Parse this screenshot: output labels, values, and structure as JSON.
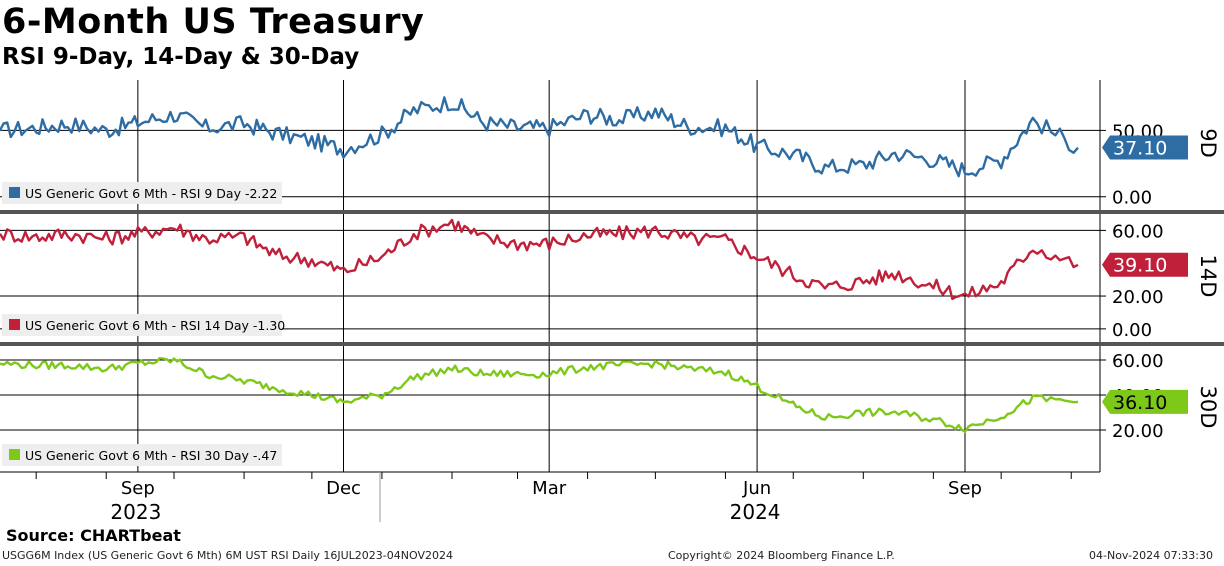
{
  "title": "6-Month US Treasury",
  "subtitle": "RSI 9-Day, 14-Day & 30-Day",
  "source": "Source: CHARTbeat",
  "footer": {
    "left": "USGG6M Index (US Generic Govt 6 Mth) 6M UST RSI  Daily 16JUL2023-04NOV2024",
    "center": "Copyright© 2024 Bloomberg Finance L.P.",
    "right": "04-Nov-2024 07:33:30"
  },
  "chart_data": [
    {
      "type": "line",
      "panel_label": "9D",
      "legend": "US Generic Govt 6 Mth - RSI 9 Day -2.22",
      "color": "#2e6da4",
      "last_value": "37.10",
      "y_ticks": [
        "0.00",
        "50.00"
      ],
      "ylim": [
        -10,
        88
      ],
      "x": [
        "2023-07-16",
        "2023-08-01",
        "2023-08-15",
        "2023-09-01",
        "2023-09-15",
        "2023-10-01",
        "2023-10-15",
        "2023-11-01",
        "2023-11-15",
        "2023-12-01",
        "2023-12-15",
        "2024-01-01",
        "2024-01-15",
        "2024-02-01",
        "2024-02-15",
        "2024-03-01",
        "2024-03-15",
        "2024-04-01",
        "2024-04-15",
        "2024-05-01",
        "2024-05-15",
        "2024-06-01",
        "2024-06-15",
        "2024-07-01",
        "2024-07-15",
        "2024-08-01",
        "2024-08-15",
        "2024-09-01",
        "2024-09-15",
        "2024-10-01",
        "2024-10-15",
        "2024-11-04"
      ],
      "values": [
        50,
        52,
        55,
        50,
        56,
        62,
        52,
        55,
        48,
        42,
        36,
        47,
        65,
        72,
        56,
        52,
        52,
        62,
        58,
        64,
        53,
        52,
        38,
        32,
        22,
        24,
        33,
        28,
        20,
        28,
        58,
        37
      ]
    },
    {
      "type": "line",
      "panel_label": "14D",
      "legend": "US Generic Govt 6 Mth - RSI 14 Day -1.30",
      "color": "#c0203a",
      "last_value": "39.10",
      "y_ticks": [
        "0.00",
        "20.00",
        "60.00"
      ],
      "ylim": [
        -8,
        70
      ],
      "x": [
        "2023-07-16",
        "2023-08-01",
        "2023-08-15",
        "2023-09-01",
        "2023-09-15",
        "2023-10-01",
        "2023-10-15",
        "2023-11-01",
        "2023-11-15",
        "2023-12-01",
        "2023-12-15",
        "2024-01-01",
        "2024-01-15",
        "2024-02-01",
        "2024-02-15",
        "2024-03-01",
        "2024-03-15",
        "2024-04-01",
        "2024-04-15",
        "2024-05-01",
        "2024-05-15",
        "2024-06-01",
        "2024-06-15",
        "2024-07-01",
        "2024-07-15",
        "2024-08-01",
        "2024-08-15",
        "2024-09-01",
        "2024-09-15",
        "2024-10-01",
        "2024-10-15",
        "2024-11-04"
      ],
      "values": [
        58,
        56,
        58,
        55,
        58,
        62,
        55,
        56,
        45,
        42,
        35,
        44,
        58,
        65,
        55,
        52,
        52,
        57,
        58,
        60,
        55,
        54,
        44,
        33,
        25,
        29,
        34,
        26,
        20,
        28,
        50,
        39
      ]
    },
    {
      "type": "line",
      "panel_label": "30D",
      "legend": "US Generic Govt 6 Mth - RSI 30 Day -.47",
      "color": "#7ec81a",
      "last_value": "36.10",
      "y_ticks": [
        "20.00",
        "40.00",
        "60.00"
      ],
      "ylim": [
        -4,
        68
      ],
      "x": [
        "2023-07-16",
        "2023-08-01",
        "2023-08-15",
        "2023-09-01",
        "2023-09-15",
        "2023-10-01",
        "2023-10-15",
        "2023-11-01",
        "2023-11-15",
        "2023-12-01",
        "2023-12-15",
        "2024-01-01",
        "2024-01-15",
        "2024-02-01",
        "2024-02-15",
        "2024-03-01",
        "2024-03-15",
        "2024-04-01",
        "2024-04-15",
        "2024-05-01",
        "2024-05-15",
        "2024-06-01",
        "2024-06-15",
        "2024-07-01",
        "2024-07-15",
        "2024-08-01",
        "2024-08-15",
        "2024-09-01",
        "2024-09-15",
        "2024-10-01",
        "2024-10-15",
        "2024-11-04"
      ],
      "values": [
        58,
        57,
        57,
        55,
        58,
        60,
        52,
        48,
        44,
        40,
        36,
        40,
        50,
        55,
        52,
        52,
        52,
        56,
        57,
        58,
        55,
        53,
        45,
        34,
        27,
        30,
        30,
        26,
        21,
        28,
        38,
        36
      ]
    }
  ],
  "x_axis": {
    "months": [
      {
        "label": "Sep",
        "date": "2023-09-15"
      },
      {
        "label": "Dec",
        "date": "2023-12-15"
      },
      {
        "label": "Mar",
        "date": "2024-03-15"
      },
      {
        "label": "Jun",
        "date": "2024-06-15"
      },
      {
        "label": "Sep",
        "date": "2024-09-15"
      }
    ],
    "years": [
      {
        "label": "2023",
        "date": "2023-09-15"
      },
      {
        "label": "2024",
        "date": "2024-06-15"
      }
    ],
    "range": [
      "2023-07-16",
      "2024-11-04"
    ]
  }
}
